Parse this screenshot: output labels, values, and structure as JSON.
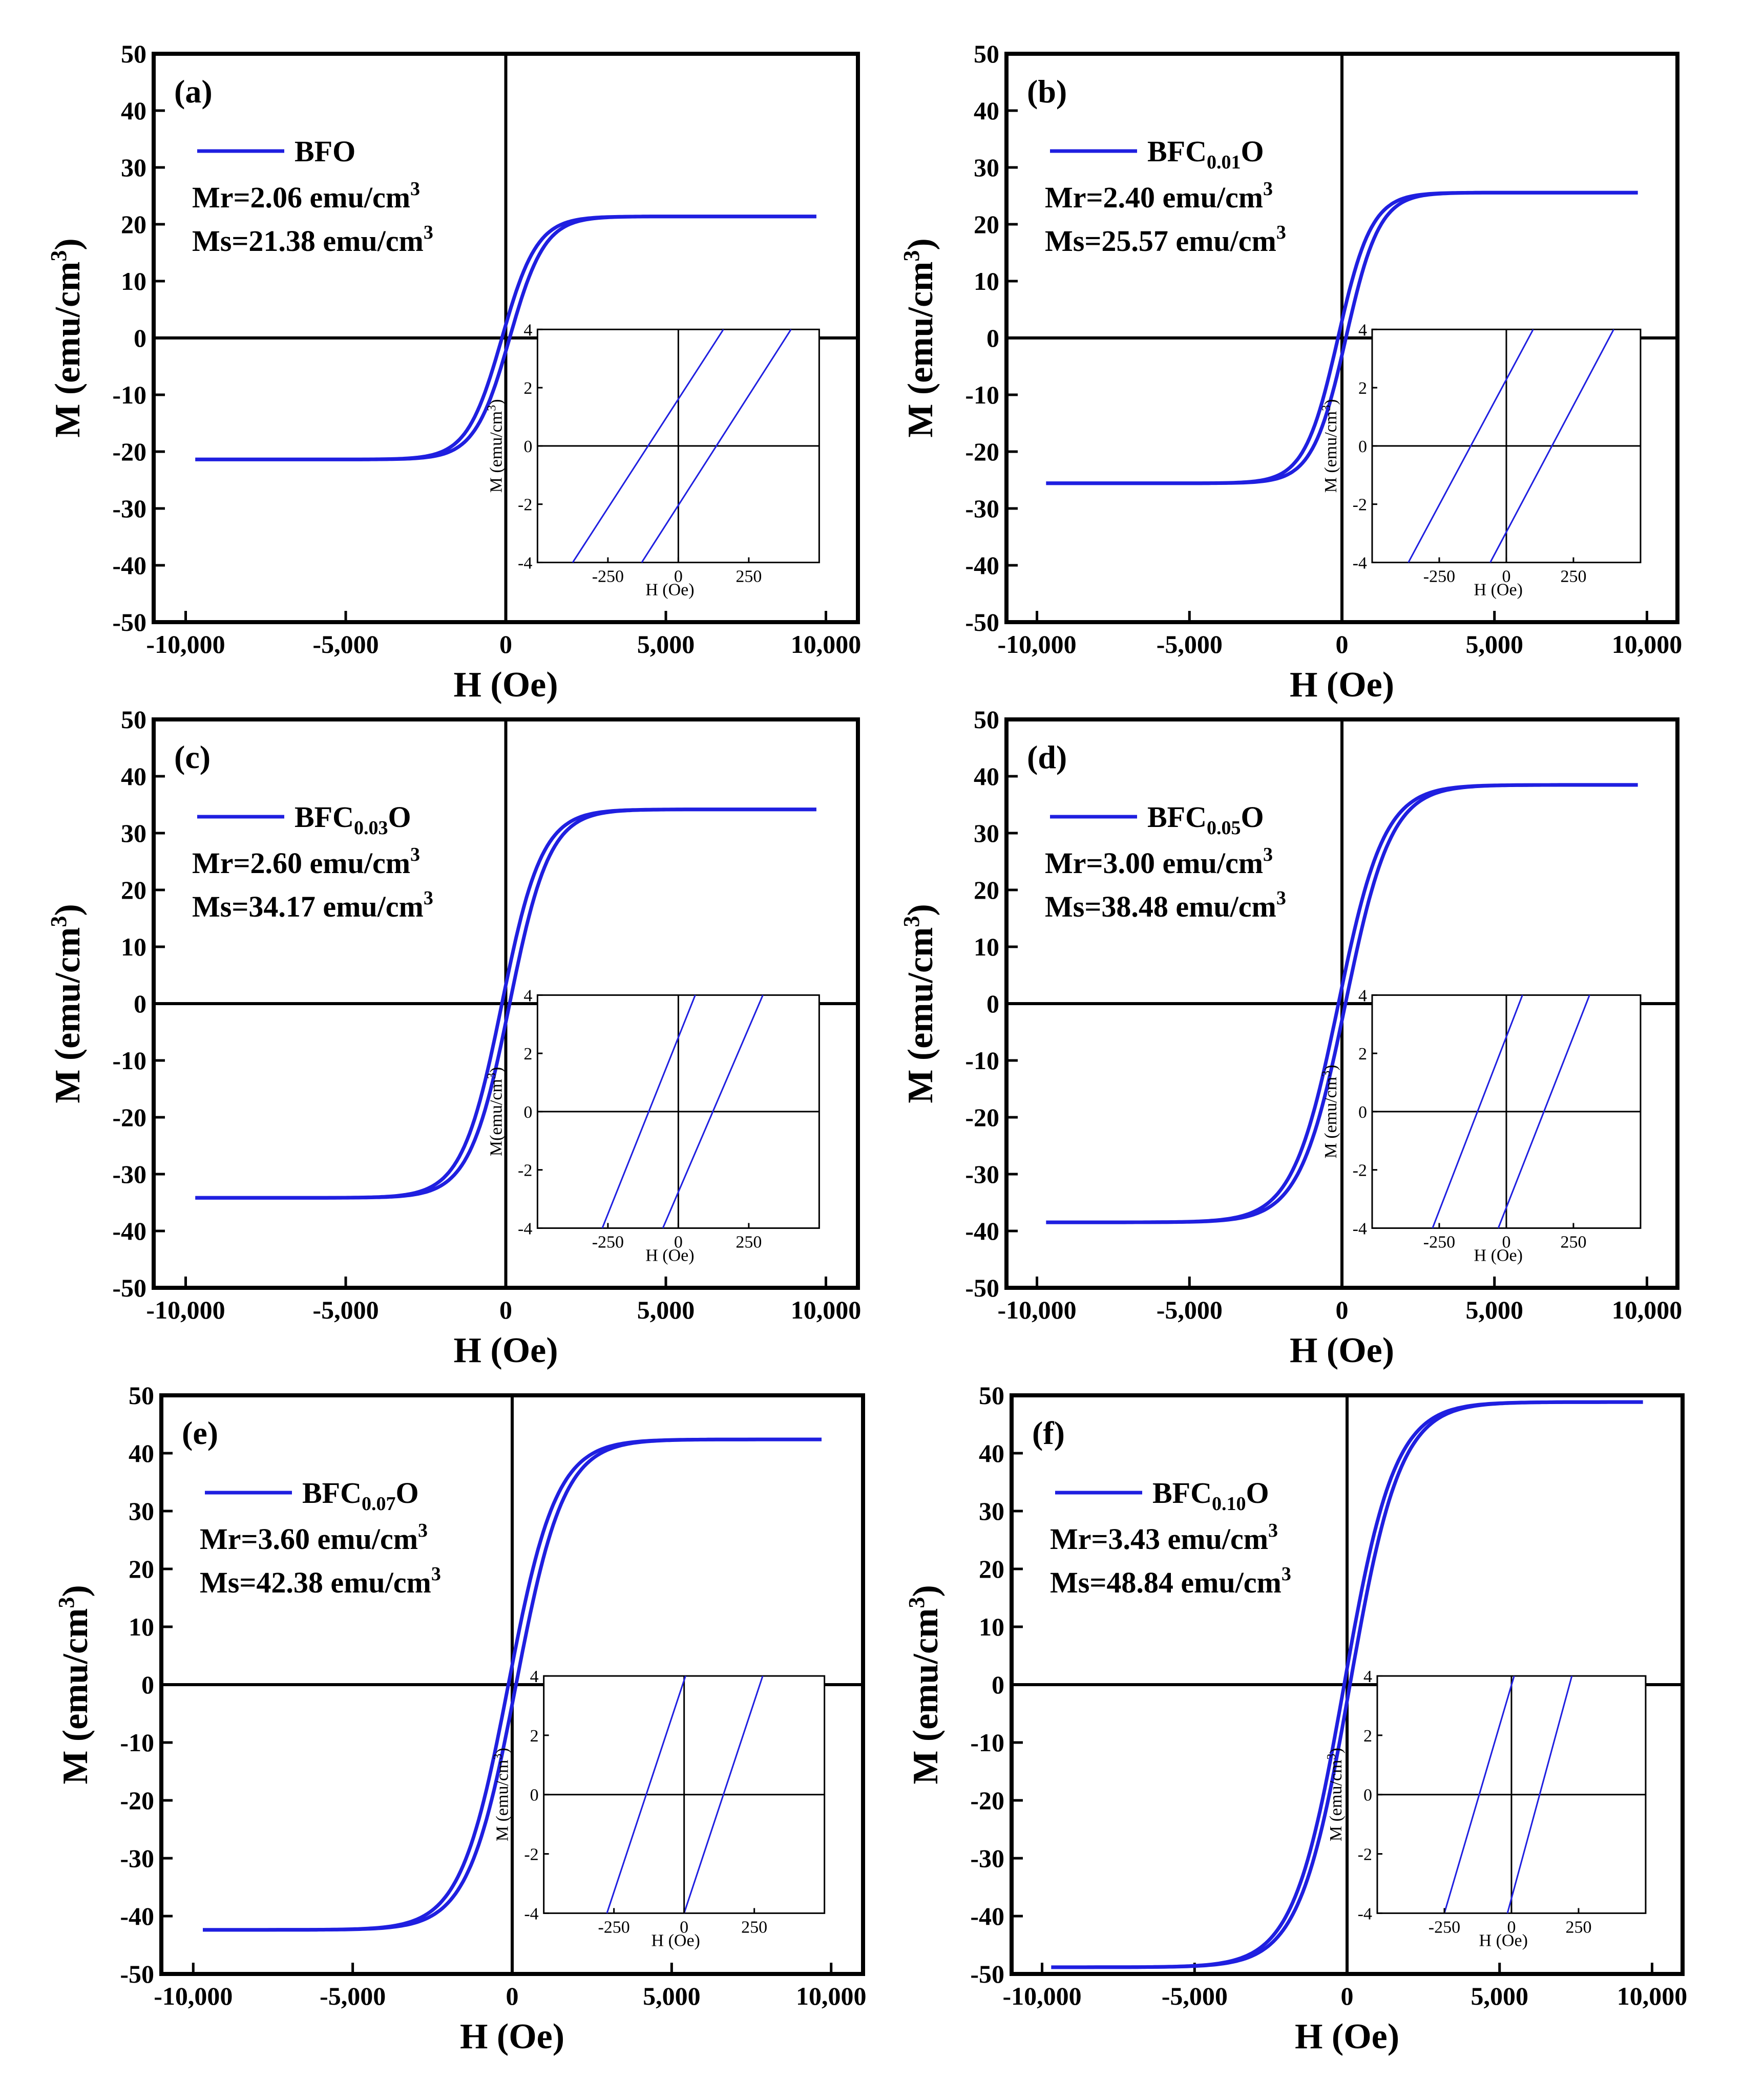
{
  "chart_data": [
    {
      "type": "line",
      "panel": "(a)",
      "xlabel": "H (Oe)",
      "ylabel": "M (emu/cm3)",
      "xlim": [
        -11000,
        11000
      ],
      "ylim": [
        -50,
        50
      ],
      "xticks": [
        -10000,
        -5000,
        0,
        5000,
        10000
      ],
      "xtick_labels": [
        "-10,000",
        "-5,000",
        "0",
        "5,000",
        "10,000"
      ],
      "yticks": [
        -50,
        -40,
        -30,
        -20,
        -10,
        0,
        10,
        20,
        30,
        40,
        50
      ],
      "legend": {
        "label": "BFO",
        "sub": "",
        "tail": ""
      },
      "mr_label": "Mr=2.06 emu/cm",
      "ms_label": "Ms=21.38 emu/cm",
      "unit_exp": "3",
      "series": [
        {
          "name": "BFO",
          "Mr": 2.06,
          "Ms": 21.38,
          "Hc": 120,
          "Hk": 1100,
          "max_field": 9700
        }
      ],
      "inset": {
        "xlim": [
          -500,
          500
        ],
        "ylim": [
          -4,
          4
        ],
        "xticks": [
          -250,
          0,
          250
        ],
        "xtick_labels": [
          "-250",
          "0",
          "250"
        ],
        "yticks": [
          -4,
          -2,
          0,
          2,
          4
        ],
        "xlabel": "H (Oe)",
        "ylabel": "M (emu/cm3)",
        "lines": [
          {
            "name": "descending",
            "points": [
              [
                -375,
                -4
              ],
              [
                160,
                4
              ]
            ]
          },
          {
            "name": "ascending",
            "points": [
              [
                -130,
                -4
              ],
              [
                400,
                4
              ]
            ]
          }
        ]
      }
    },
    {
      "type": "line",
      "panel": "(b)",
      "xlabel": "H (Oe)",
      "ylabel": "M (emu/cm3)",
      "xlim": [
        -11000,
        11000
      ],
      "ylim": [
        -50,
        50
      ],
      "xticks": [
        -10000,
        -5000,
        0,
        5000,
        10000
      ],
      "xtick_labels": [
        "-10,000",
        "-5,000",
        "0",
        "5,000",
        "10,000"
      ],
      "yticks": [
        -50,
        -40,
        -30,
        -20,
        -10,
        0,
        10,
        20,
        30,
        40,
        50
      ],
      "legend": {
        "label": "BFC",
        "sub": "0.01",
        "tail": "O"
      },
      "mr_label": "Mr=2.40 emu/cm",
      "ms_label": "Ms=25.57 emu/cm",
      "unit_exp": "3",
      "series": [
        {
          "name": "BFC0.01O",
          "Mr": 2.4,
          "Ms": 25.57,
          "Hc": 130,
          "Hk": 1100,
          "max_field": 9700
        }
      ],
      "inset": {
        "xlim": [
          -500,
          500
        ],
        "ylim": [
          -4,
          4
        ],
        "xticks": [
          -250,
          0,
          250
        ],
        "xtick_labels": [
          "-250",
          "0",
          "250"
        ],
        "yticks": [
          -4,
          -2,
          0,
          2,
          4
        ],
        "xlabel": "H (Oe)",
        "ylabel": "M (emu/cm3)",
        "lines": [
          {
            "name": "descending",
            "points": [
              [
                -365,
                -4
              ],
              [
                100,
                4
              ]
            ]
          },
          {
            "name": "ascending",
            "points": [
              [
                -60,
                -4
              ],
              [
                400,
                4
              ]
            ]
          }
        ]
      }
    },
    {
      "type": "line",
      "panel": "(c)",
      "xlabel": "H (Oe)",
      "ylabel": "M (emu/cm3)",
      "xlim": [
        -11000,
        11000
      ],
      "ylim": [
        -50,
        50
      ],
      "xticks": [
        -10000,
        -5000,
        0,
        5000,
        10000
      ],
      "xtick_labels": [
        "-10,000",
        "-5,000",
        "0",
        "5,000",
        "10,000"
      ],
      "yticks": [
        -50,
        -40,
        -30,
        -20,
        -10,
        0,
        10,
        20,
        30,
        40,
        50
      ],
      "legend": {
        "label": "BFC",
        "sub": "0.03",
        "tail": "O"
      },
      "mr_label": "Mr=2.60 emu/cm",
      "ms_label": "Ms=34.17 emu/cm",
      "unit_exp": "3",
      "series": [
        {
          "name": "BFC0.03O",
          "Mr": 2.6,
          "Ms": 34.17,
          "Hc": 120,
          "Hk": 1250,
          "max_field": 9700
        }
      ],
      "inset": {
        "xlim": [
          -500,
          500
        ],
        "ylim": [
          -4,
          4
        ],
        "xticks": [
          -250,
          0,
          250
        ],
        "xtick_labels": [
          "-250",
          "0",
          "250"
        ],
        "yticks": [
          -4,
          -2,
          0,
          2,
          4
        ],
        "xlabel": "H (Oe)",
        "ylabel": "M(emu/cm3)",
        "lines": [
          {
            "name": "descending",
            "points": [
              [
                -270,
                -4
              ],
              [
                60,
                4
              ]
            ]
          },
          {
            "name": "ascending",
            "points": [
              [
                -55,
                -4
              ],
              [
                300,
                4
              ]
            ]
          }
        ]
      }
    },
    {
      "type": "line",
      "panel": "(d)",
      "xlabel": "H (Oe)",
      "ylabel": "M (emu/cm3)",
      "xlim": [
        -11000,
        11000
      ],
      "ylim": [
        -50,
        50
      ],
      "xticks": [
        -10000,
        -5000,
        0,
        5000,
        10000
      ],
      "xtick_labels": [
        "-10,000",
        "-5,000",
        "0",
        "5,000",
        "10,000"
      ],
      "yticks": [
        -50,
        -40,
        -30,
        -20,
        -10,
        0,
        10,
        20,
        30,
        40,
        50
      ],
      "legend": {
        "label": "BFC",
        "sub": "0.05",
        "tail": "O"
      },
      "mr_label": "Mr=3.00 emu/cm",
      "ms_label": "Ms=38.48 emu/cm",
      "unit_exp": "3",
      "series": [
        {
          "name": "BFC0.05O",
          "Mr": 3.0,
          "Ms": 38.48,
          "Hc": 115,
          "Hk": 1500,
          "max_field": 9700
        }
      ],
      "inset": {
        "xlim": [
          -500,
          500
        ],
        "ylim": [
          -4,
          4
        ],
        "xticks": [
          -250,
          0,
          250
        ],
        "xtick_labels": [
          "-250",
          "0",
          "250"
        ],
        "yticks": [
          -4,
          -2,
          0,
          2,
          4
        ],
        "xlabel": "H (Oe)",
        "ylabel": "M (emu/cm3)",
        "lines": [
          {
            "name": "descending",
            "points": [
              [
                -275,
                -4
              ],
              [
                60,
                4
              ]
            ]
          },
          {
            "name": "ascending",
            "points": [
              [
                -30,
                -4
              ],
              [
                310,
                4
              ]
            ]
          }
        ]
      }
    },
    {
      "type": "line",
      "panel": "(e)",
      "xlabel": "H (Oe)",
      "ylabel": "M (emu/cm3)",
      "xlim": [
        -11000,
        11000
      ],
      "ylim": [
        -50,
        50
      ],
      "xticks": [
        -10000,
        -5000,
        0,
        5000,
        10000
      ],
      "xtick_labels": [
        "-10,000",
        "-5,000",
        "0",
        "5,000",
        "10,000"
      ],
      "yticks": [
        -50,
        -40,
        -30,
        -20,
        -10,
        0,
        10,
        20,
        30,
        40,
        50
      ],
      "legend": {
        "label": "BFC",
        "sub": "0.07",
        "tail": "O"
      },
      "mr_label": "Mr=3.60 emu/cm",
      "ms_label": "Ms=42.38 emu/cm",
      "unit_exp": "3",
      "series": [
        {
          "name": "BFC0.07O",
          "Mr": 3.6,
          "Ms": 42.38,
          "Hc": 120,
          "Hk": 1500,
          "max_field": 9700
        }
      ],
      "inset": {
        "xlim": [
          -500,
          500
        ],
        "ylim": [
          -4,
          4
        ],
        "xticks": [
          -250,
          0,
          250
        ],
        "xtick_labels": [
          "-250",
          "0",
          "250"
        ],
        "yticks": [
          -4,
          -2,
          0,
          2,
          4
        ],
        "xlabel": "H (Oe)",
        "ylabel": "M (emu/cm3)",
        "lines": [
          {
            "name": "descending",
            "points": [
              [
                -275,
                -4
              ],
              [
                5,
                4
              ]
            ]
          },
          {
            "name": "ascending",
            "points": [
              [
                0,
                -4
              ],
              [
                280,
                4
              ]
            ]
          }
        ]
      }
    },
    {
      "type": "line",
      "panel": "(f)",
      "xlabel": "H (Oe)",
      "ylabel": "M (emu/cm3)",
      "xlim": [
        -11000,
        11000
      ],
      "ylim": [
        -50,
        50
      ],
      "xticks": [
        -10000,
        -5000,
        0,
        5000,
        10000
      ],
      "xtick_labels": [
        "-10,000",
        "-5,000",
        "0",
        "5,000",
        "10,000"
      ],
      "yticks": [
        -50,
        -40,
        -30,
        -20,
        -10,
        0,
        10,
        20,
        30,
        40,
        50
      ],
      "legend": {
        "label": "BFC",
        "sub": "0.10",
        "tail": "O"
      },
      "mr_label": "Mr=3.43 emu/cm",
      "ms_label": "Ms=48.84 emu/cm",
      "unit_exp": "3",
      "series": [
        {
          "name": "BFC0.10O",
          "Mr": 3.43,
          "Ms": 48.84,
          "Hc": 95,
          "Hk": 1650,
          "max_field": 9700
        }
      ],
      "inset": {
        "xlim": [
          -500,
          500
        ],
        "ylim": [
          -4,
          4
        ],
        "xticks": [
          -250,
          0,
          250
        ],
        "xtick_labels": [
          "-250",
          "0",
          "250"
        ],
        "yticks": [
          -4,
          -2,
          0,
          2,
          4
        ],
        "xlabel": "H (Oe)",
        "ylabel": "M (emu/cm3)",
        "lines": [
          {
            "name": "descending",
            "points": [
              [
                -250,
                -4
              ],
              [
                10,
                4
              ]
            ]
          },
          {
            "name": "ascending",
            "points": [
              [
                -15,
                -4
              ],
              [
                225,
                4
              ]
            ]
          }
        ]
      }
    }
  ]
}
